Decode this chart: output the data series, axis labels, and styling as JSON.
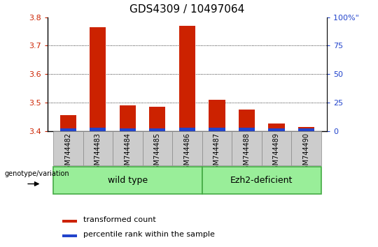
{
  "title": "GDS4309 / 10497064",
  "samples": [
    "GSM744482",
    "GSM744483",
    "GSM744484",
    "GSM744485",
    "GSM744486",
    "GSM744487",
    "GSM744488",
    "GSM744489",
    "GSM744490"
  ],
  "transformed_count": [
    3.455,
    3.765,
    3.49,
    3.485,
    3.77,
    3.51,
    3.475,
    3.425,
    3.415
  ],
  "blue_bar_heights": [
    0.01,
    0.012,
    0.01,
    0.01,
    0.011,
    0.011,
    0.012,
    0.009,
    0.008
  ],
  "ylim_left": [
    3.4,
    3.8
  ],
  "ylim_right": [
    0,
    100
  ],
  "yticks_left": [
    3.4,
    3.5,
    3.6,
    3.7,
    3.8
  ],
  "yticks_right": [
    0,
    25,
    50,
    75,
    100
  ],
  "bar_bottom": 3.4,
  "red_color": "#cc2200",
  "blue_color": "#2244cc",
  "wild_type_label": "wild type",
  "ezh2_label": "Ezh2-deficient",
  "genotype_label": "genotype/variation",
  "legend_red": "transformed count",
  "legend_blue": "percentile rank within the sample",
  "group_fill": "#99ee99",
  "group_edge": "#44aa44",
  "tick_label_color_left": "#cc2200",
  "tick_label_color_right": "#2244cc",
  "bar_width": 0.55,
  "n_wild": 5,
  "n_ezh": 4
}
